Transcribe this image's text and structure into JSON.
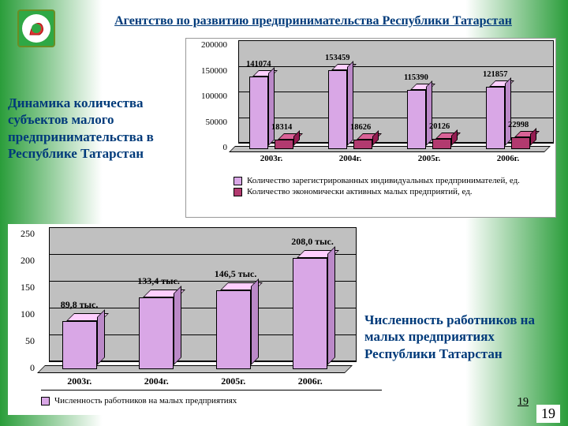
{
  "header": {
    "title": "Агентство по развитию предпринимательства Республики Татарстан"
  },
  "subtitle1": "Динамика количества субъектов малого предпринимательства в Республике Татарстан",
  "subtitle2": "Численность работников на малых предприятиях Республики Татарстан",
  "pagenum": "19",
  "chart1": {
    "type": "bar-3d-grouped",
    "background_color": "#ffffff",
    "wall_color": "#c0c0c0",
    "categories": [
      "2003г.",
      "2004г.",
      "2005г.",
      "2006г."
    ],
    "series": [
      {
        "name": "Количество зарегистрированных индивидуальных предпринимателей, ед.",
        "color": "#d9a7e6",
        "values": [
          141074,
          153459,
          115390,
          121857
        ]
      },
      {
        "name": "Количество экономически активных малых предприятий, ед.",
        "color": "#b23a6f",
        "values": [
          18314,
          18626,
          20126,
          22998
        ]
      }
    ],
    "ylim": [
      0,
      200000
    ],
    "ytick_step": 50000,
    "label_fontsize": 11,
    "bar_depth": 8
  },
  "chart2": {
    "type": "bar-3d",
    "background_color": "#ffffff",
    "wall_color": "#c0c0c0",
    "categories": [
      "2003г.",
      "2004г.",
      "2005г.",
      "2006г."
    ],
    "series": [
      {
        "name": "Численность работников на малых предприятиях",
        "color": "#d9a7e6",
        "values": [
          89.8,
          133.4,
          146.5,
          208.0
        ],
        "value_labels": [
          "89,8 тыс.",
          "133,4 тыс.",
          "146,5 тыс.",
          "208,0 тыс."
        ]
      }
    ],
    "ylim": [
      0,
      250
    ],
    "ytick_step": 50,
    "label_fontsize": 12,
    "bar_depth": 10
  }
}
